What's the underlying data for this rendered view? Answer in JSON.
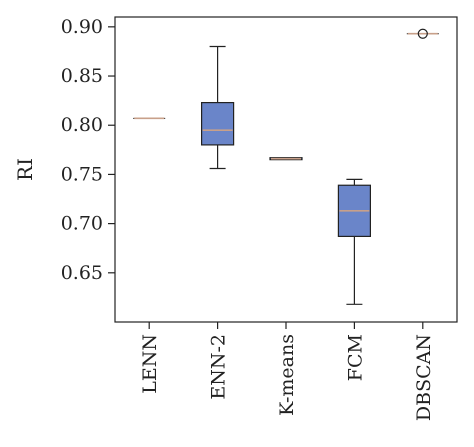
{
  "chart_data": {
    "type": "box",
    "ylabel": "RI",
    "xlabel": "",
    "ylim": [
      0.6,
      0.91
    ],
    "yticks": [
      0.65,
      0.7,
      0.75,
      0.8,
      0.85,
      0.9
    ],
    "colors": {
      "box_fill": "#6a85c9",
      "median": "#c8a08a",
      "stroke": "#222222"
    },
    "categories": [
      "LENN",
      "ENN-2",
      "K-means",
      "FCM",
      "DBSCAN"
    ],
    "boxes": [
      {
        "label": "LENN",
        "min": 0.807,
        "q1": 0.807,
        "median": 0.807,
        "q3": 0.807,
        "max": 0.807,
        "outliers": []
      },
      {
        "label": "ENN-2",
        "min": 0.756,
        "q1": 0.78,
        "median": 0.795,
        "q3": 0.823,
        "max": 0.88,
        "outliers": []
      },
      {
        "label": "K-means",
        "min": 0.765,
        "q1": 0.765,
        "median": 0.766,
        "q3": 0.767,
        "max": 0.767,
        "outliers": []
      },
      {
        "label": "FCM",
        "min": 0.618,
        "q1": 0.687,
        "median": 0.713,
        "q3": 0.739,
        "max": 0.745,
        "outliers": []
      },
      {
        "label": "DBSCAN",
        "min": 0.893,
        "q1": 0.893,
        "median": 0.893,
        "q3": 0.893,
        "max": 0.893,
        "outliers": [
          0.893
        ]
      }
    ]
  }
}
